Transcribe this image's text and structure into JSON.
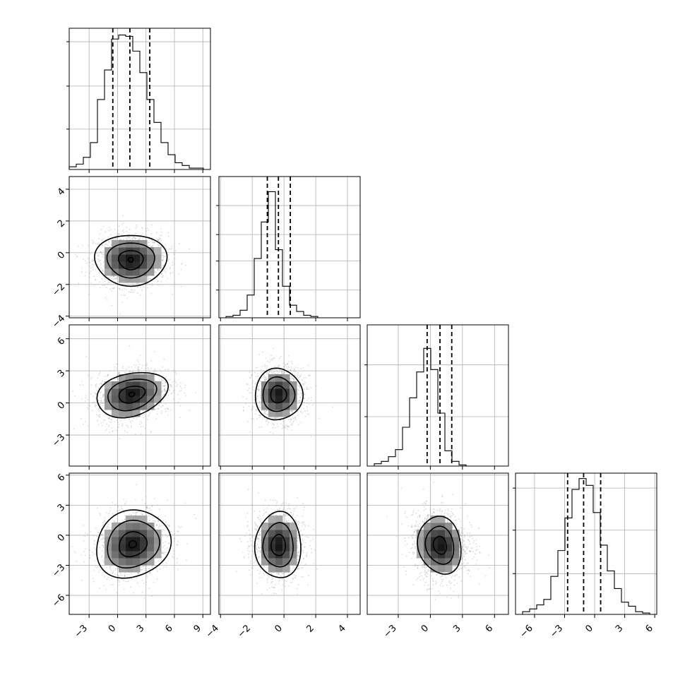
{
  "chart_data": {
    "type": "corner",
    "title": "",
    "grid": true,
    "quantile_line_style": "dashed",
    "variables": [
      {
        "range": [
          -5.1,
          9.8
        ],
        "ticks": [
          -3,
          0,
          3,
          6,
          9
        ],
        "tick_labels": [
          "−3",
          "0",
          "3",
          "6",
          "9"
        ],
        "quantiles": [
          -0.5,
          1.3,
          3.4
        ],
        "hist_bins": {
          "start": -5.1,
          "width": 0.745,
          "counts": [
            0.02,
            0.04,
            0.09,
            0.2,
            0.52,
            0.74,
            0.97,
            1.0,
            0.99,
            0.88,
            0.72,
            0.52,
            0.35,
            0.2,
            0.11,
            0.05,
            0.03,
            0.01,
            0.01,
            0.0
          ]
        },
        "hist_ylim": [
          0,
          1.05
        ],
        "hist_y_gridlines": [
          0.3,
          0.62,
          0.95
        ]
      },
      {
        "range": [
          -4.1,
          4.8
        ],
        "ticks": [
          -4,
          -2,
          0,
          2,
          4
        ],
        "tick_labels": [
          "−4",
          "−2",
          "0",
          "2",
          "4"
        ],
        "quantiles": [
          -1.05,
          -0.35,
          0.4
        ],
        "hist_bins": {
          "start": -4.1,
          "width": 0.445,
          "counts": [
            0.0,
            0.01,
            0.02,
            0.06,
            0.18,
            0.47,
            0.76,
            1.0,
            0.54,
            0.25,
            0.1,
            0.05,
            0.02,
            0.01,
            0.0,
            0.0,
            0.0,
            0.0,
            0.0,
            0.0
          ]
        },
        "hist_ylim": [
          0,
          1.12
        ],
        "hist_y_gridlines": [
          0.22,
          0.45,
          0.66,
          0.89
        ]
      },
      {
        "range": [
          -5.9,
          7.3
        ],
        "ticks": [
          -3,
          0,
          3,
          6
        ],
        "tick_labels": [
          "−3",
          "0",
          "3",
          "6"
        ],
        "quantiles": [
          -0.3,
          0.9,
          2.0
        ],
        "hist_bins": {
          "start": -5.9,
          "width": 0.66,
          "counts": [
            0.0,
            0.02,
            0.04,
            0.08,
            0.14,
            0.33,
            0.58,
            0.8,
            1.0,
            0.82,
            0.45,
            0.13,
            0.04,
            0.01,
            0.0,
            0.0,
            0.0,
            0.0,
            0.0,
            0.0
          ]
        },
        "hist_ylim": [
          0,
          1.2
        ],
        "hist_y_gridlines": [
          0.42,
          0.86
        ]
      },
      {
        "range": [
          -7.9,
          6.2
        ],
        "ticks": [
          -6,
          -3,
          0,
          3,
          6
        ],
        "tick_labels": [
          "−6",
          "−3",
          "0",
          "3",
          "6"
        ],
        "quantiles": [
          -2.7,
          -1.1,
          0.6
        ],
        "hist_bins": {
          "start": -7.9,
          "width": 0.705,
          "counts": [
            0.0,
            0.02,
            0.04,
            0.07,
            0.11,
            0.28,
            0.47,
            0.71,
            0.92,
            1.0,
            0.95,
            0.75,
            0.51,
            0.32,
            0.19,
            0.09,
            0.06,
            0.02,
            0.01,
            0.0
          ]
        },
        "hist_ylim": [
          0,
          1.04
        ],
        "hist_y_gridlines": [
          0.3,
          0.62,
          0.93
        ]
      }
    ],
    "pairs": [
      {
        "x_var": 0,
        "y_var": 1,
        "center": [
          1.4,
          -0.45
        ],
        "spread": [
          1.95,
          0.85
        ],
        "rotation_deg": 0,
        "contour_levels": [
          [
            0.25,
            0.15
          ],
          [
            1.3,
            0.6
          ],
          [
            2.5,
            1.1
          ],
          [
            3.8,
            1.6
          ]
        ]
      },
      {
        "x_var": 0,
        "y_var": 2,
        "center": [
          1.5,
          0.8
        ],
        "spread": [
          2.0,
          1.25
        ],
        "rotation_deg": 12,
        "contour_levels": [
          [
            0.3,
            0.2
          ],
          [
            1.4,
            0.75
          ],
          [
            2.6,
            1.4
          ],
          [
            3.8,
            2.0
          ]
        ]
      },
      {
        "x_var": 1,
        "y_var": 2,
        "center": [
          -0.35,
          0.8
        ],
        "spread": [
          0.8,
          1.3
        ],
        "rotation_deg": 0,
        "contour_levels": [
          [
            0.5,
            0.8
          ],
          [
            1.0,
            1.6
          ],
          [
            1.5,
            2.4
          ]
        ]
      },
      {
        "x_var": 0,
        "y_var": 3,
        "center": [
          1.6,
          -0.9
        ],
        "spread": [
          2.0,
          1.65
        ],
        "rotation_deg": 20,
        "contour_levels": [
          [
            0.4,
            0.35
          ],
          [
            1.5,
            1.2
          ],
          [
            2.8,
            2.3
          ],
          [
            4.0,
            3.3
          ]
        ]
      },
      {
        "x_var": 1,
        "y_var": 3,
        "center": [
          -0.35,
          -1.0
        ],
        "spread": [
          0.8,
          1.75
        ],
        "rotation_deg": 0,
        "contour_levels": [
          [
            0.45,
            1.05
          ],
          [
            0.95,
            2.2
          ],
          [
            1.45,
            3.3
          ]
        ]
      },
      {
        "x_var": 2,
        "y_var": 3,
        "center": [
          0.9,
          -1.0
        ],
        "spread": [
          1.3,
          1.75
        ],
        "rotation_deg": 10,
        "contour_levels": [
          [
            0.6,
            0.9
          ],
          [
            1.3,
            1.9
          ],
          [
            2.0,
            2.9
          ]
        ]
      }
    ]
  }
}
